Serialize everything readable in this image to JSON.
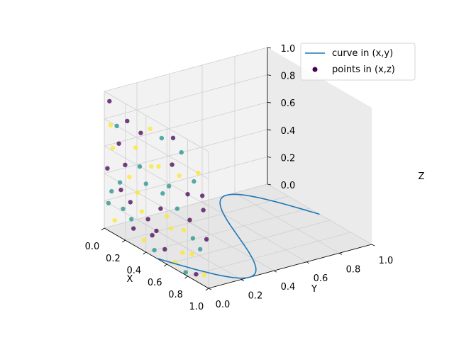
{
  "chart_data": {
    "type": "scatter",
    "projection": "3d",
    "axes": {
      "x": {
        "label": "X",
        "lim": [
          0,
          1
        ],
        "ticks": [
          "0.0",
          "0.2",
          "0.4",
          "0.6",
          "0.8",
          "1.0"
        ]
      },
      "y": {
        "label": "Y",
        "lim": [
          0,
          1
        ],
        "ticks": [
          "0.0",
          "0.2",
          "0.4",
          "0.6",
          "0.8",
          "1.0"
        ]
      },
      "z": {
        "label": "Z",
        "lim": [
          0,
          1
        ],
        "ticks": [
          "0.0",
          "0.2",
          "0.4",
          "0.6",
          "0.8",
          "1.0"
        ]
      }
    },
    "grid": true,
    "legend": {
      "placement": "top-right"
    },
    "series": [
      {
        "name": "curve in (x,y)",
        "type": "line",
        "color": "#1f77b4",
        "z": 0,
        "t_range": [
          0,
          1
        ],
        "x_formula": "sin(2*pi*t)/2 + 0.5",
        "y_formula": "t",
        "samples": 100
      },
      {
        "name": "points in (x,z)",
        "type": "scatter",
        "y": 0,
        "colors": {
          "0": "#440154",
          "1": "#21918c",
          "2": "#fde725"
        },
        "points": [
          {
            "x": 0.05,
            "z": 0.95,
            "c": 0
          },
          {
            "x": 0.12,
            "z": 0.8,
            "c": 1
          },
          {
            "x": 0.08,
            "z": 0.62,
            "c": 2
          },
          {
            "x": 0.2,
            "z": 0.55,
            "c": 0
          },
          {
            "x": 0.15,
            "z": 0.4,
            "c": 1
          },
          {
            "x": 0.3,
            "z": 0.72,
            "c": 2
          },
          {
            "x": 0.25,
            "z": 0.3,
            "c": 0
          },
          {
            "x": 0.35,
            "z": 0.85,
            "c": 0
          },
          {
            "x": 0.4,
            "z": 0.5,
            "c": 1
          },
          {
            "x": 0.45,
            "z": 0.65,
            "c": 2
          },
          {
            "x": 0.5,
            "z": 0.2,
            "c": 0
          },
          {
            "x": 0.55,
            "z": 0.9,
            "c": 1
          },
          {
            "x": 0.6,
            "z": 0.35,
            "c": 2
          },
          {
            "x": 0.65,
            "z": 0.75,
            "c": 0
          },
          {
            "x": 0.7,
            "z": 0.45,
            "c": 1
          },
          {
            "x": 0.75,
            "z": 0.15,
            "c": 2
          },
          {
            "x": 0.8,
            "z": 0.6,
            "c": 0
          },
          {
            "x": 0.85,
            "z": 0.3,
            "c": 1
          },
          {
            "x": 0.9,
            "z": 0.8,
            "c": 2
          },
          {
            "x": 0.95,
            "z": 0.55,
            "c": 0
          },
          {
            "x": 0.1,
            "z": 0.1,
            "c": 2
          },
          {
            "x": 0.18,
            "z": 0.22,
            "c": 1
          },
          {
            "x": 0.28,
            "z": 0.12,
            "c": 0
          },
          {
            "x": 0.38,
            "z": 0.08,
            "c": 2
          },
          {
            "x": 0.48,
            "z": 0.05,
            "c": 1
          },
          {
            "x": 0.58,
            "z": 0.1,
            "c": 0
          },
          {
            "x": 0.68,
            "z": 0.05,
            "c": 2
          },
          {
            "x": 0.78,
            "z": 0.02,
            "c": 1
          },
          {
            "x": 0.88,
            "z": 0.05,
            "c": 0
          },
          {
            "x": 0.98,
            "z": 0.35,
            "c": 0
          },
          {
            "x": 0.03,
            "z": 0.45,
            "c": 0
          },
          {
            "x": 0.07,
            "z": 0.3,
            "c": 1
          },
          {
            "x": 0.22,
            "z": 0.88,
            "c": 0
          },
          {
            "x": 0.32,
            "z": 0.4,
            "c": 2
          },
          {
            "x": 0.42,
            "z": 0.25,
            "c": 0
          },
          {
            "x": 0.52,
            "z": 0.68,
            "c": 2
          },
          {
            "x": 0.62,
            "z": 0.58,
            "c": 1
          },
          {
            "x": 0.72,
            "z": 0.7,
            "c": 2
          },
          {
            "x": 0.82,
            "z": 0.42,
            "c": 0
          },
          {
            "x": 0.92,
            "z": 0.25,
            "c": 1
          },
          {
            "x": 0.14,
            "z": 0.68,
            "c": 0
          },
          {
            "x": 0.24,
            "z": 0.48,
            "c": 2
          },
          {
            "x": 0.34,
            "z": 0.6,
            "c": 1
          },
          {
            "x": 0.44,
            "z": 0.92,
            "c": 2
          },
          {
            "x": 0.54,
            "z": 0.38,
            "c": 0
          },
          {
            "x": 0.64,
            "z": 0.28,
            "c": 2
          },
          {
            "x": 0.74,
            "z": 0.88,
            "c": 1
          },
          {
            "x": 0.84,
            "z": 0.18,
            "c": 2
          },
          {
            "x": 0.94,
            "z": 0.65,
            "c": 0
          },
          {
            "x": 0.06,
            "z": 0.78,
            "c": 2
          },
          {
            "x": 0.16,
            "z": 0.35,
            "c": 0
          },
          {
            "x": 0.26,
            "z": 0.18,
            "c": 1
          },
          {
            "x": 0.36,
            "z": 0.28,
            "c": 2
          },
          {
            "x": 0.46,
            "z": 0.15,
            "c": 0
          },
          {
            "x": 0.56,
            "z": 0.5,
            "c": 1
          },
          {
            "x": 0.66,
            "z": 0.95,
            "c": 0
          },
          {
            "x": 0.76,
            "z": 0.32,
            "c": 2
          },
          {
            "x": 0.86,
            "z": 0.72,
            "c": 1
          },
          {
            "x": 0.96,
            "z": 0.08,
            "c": 2
          },
          {
            "x": 0.04,
            "z": 0.2,
            "c": 1
          }
        ]
      }
    ]
  }
}
